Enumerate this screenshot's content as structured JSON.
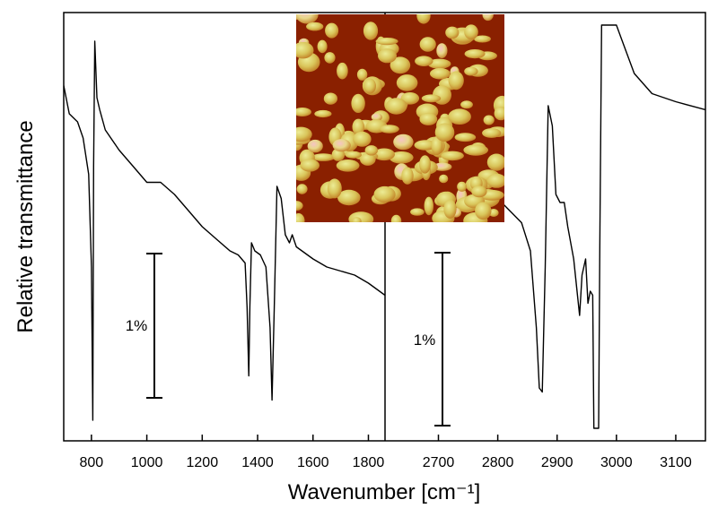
{
  "chart_data": {
    "type": "line",
    "xlabel": "Wavenumber [cm⁻¹]",
    "ylabel": "Relative transmittance",
    "broken_axis": true,
    "panels": [
      {
        "xlim": [
          700,
          1860
        ],
        "xticks": [
          800,
          1000,
          1200,
          1400,
          1600,
          1800
        ],
        "scale_bar": {
          "label": "1%",
          "x": 1030
        },
        "series": [
          {
            "x": [
              700,
              720,
              750,
              770,
              790,
              800,
              805,
              808,
              812,
              820,
              830,
              850,
              900,
              950,
              1000,
              1050,
              1100,
              1150,
              1200,
              1250,
              1300,
              1330,
              1355,
              1362,
              1368,
              1372,
              1378,
              1390,
              1410,
              1430,
              1445,
              1452,
              1460,
              1470,
              1485,
              1500,
              1515,
              1525,
              1540,
              1560,
              1600,
              1650,
              1700,
              1750,
              1800,
              1860
            ],
            "y": [
              0.85,
              0.78,
              0.76,
              0.72,
              0.63,
              0.4,
              0.02,
              0.65,
              0.96,
              0.82,
              0.79,
              0.74,
              0.69,
              0.65,
              0.61,
              0.61,
              0.58,
              0.54,
              0.5,
              0.47,
              0.44,
              0.43,
              0.41,
              0.3,
              0.13,
              0.3,
              0.46,
              0.44,
              0.43,
              0.4,
              0.25,
              0.07,
              0.3,
              0.6,
              0.57,
              0.48,
              0.46,
              0.48,
              0.45,
              0.44,
              0.42,
              0.4,
              0.39,
              0.38,
              0.36,
              0.33
            ]
          }
        ]
      },
      {
        "xlim": [
          2610,
          3150
        ],
        "xticks": [
          2700,
          2800,
          2900,
          3000,
          3100
        ],
        "scale_bar": {
          "label": "1%",
          "x": 2700
        },
        "series": [
          {
            "x": [
              2800,
              2820,
              2840,
              2855,
              2865,
              2870,
              2875,
              2880,
              2885,
              2892,
              2898,
              2905,
              2912,
              2918,
              2928,
              2935,
              2938,
              2942,
              2948,
              2952,
              2956,
              2960,
              2962,
              2966,
              2970,
              2972,
              2975,
              2980,
              3000,
              3010,
              3030,
              3060,
              3100,
              3150
            ],
            "y": [
              0.57,
              0.54,
              0.51,
              0.44,
              0.25,
              0.1,
              0.09,
              0.4,
              0.8,
              0.75,
              0.58,
              0.56,
              0.56,
              0.5,
              0.42,
              0.32,
              0.28,
              0.38,
              0.42,
              0.31,
              0.34,
              0.33,
              0.0,
              0.0,
              0.0,
              0.45,
              1.0,
              1.0,
              1.0,
              0.96,
              0.88,
              0.83,
              0.81,
              0.79
            ]
          }
        ]
      }
    ]
  },
  "inset": {
    "name": "AFM topography inset",
    "colors": {
      "low": "#7a1500",
      "mid": "#c8661a",
      "high": "#e8e07a",
      "peak": "#f3a4a4"
    }
  }
}
